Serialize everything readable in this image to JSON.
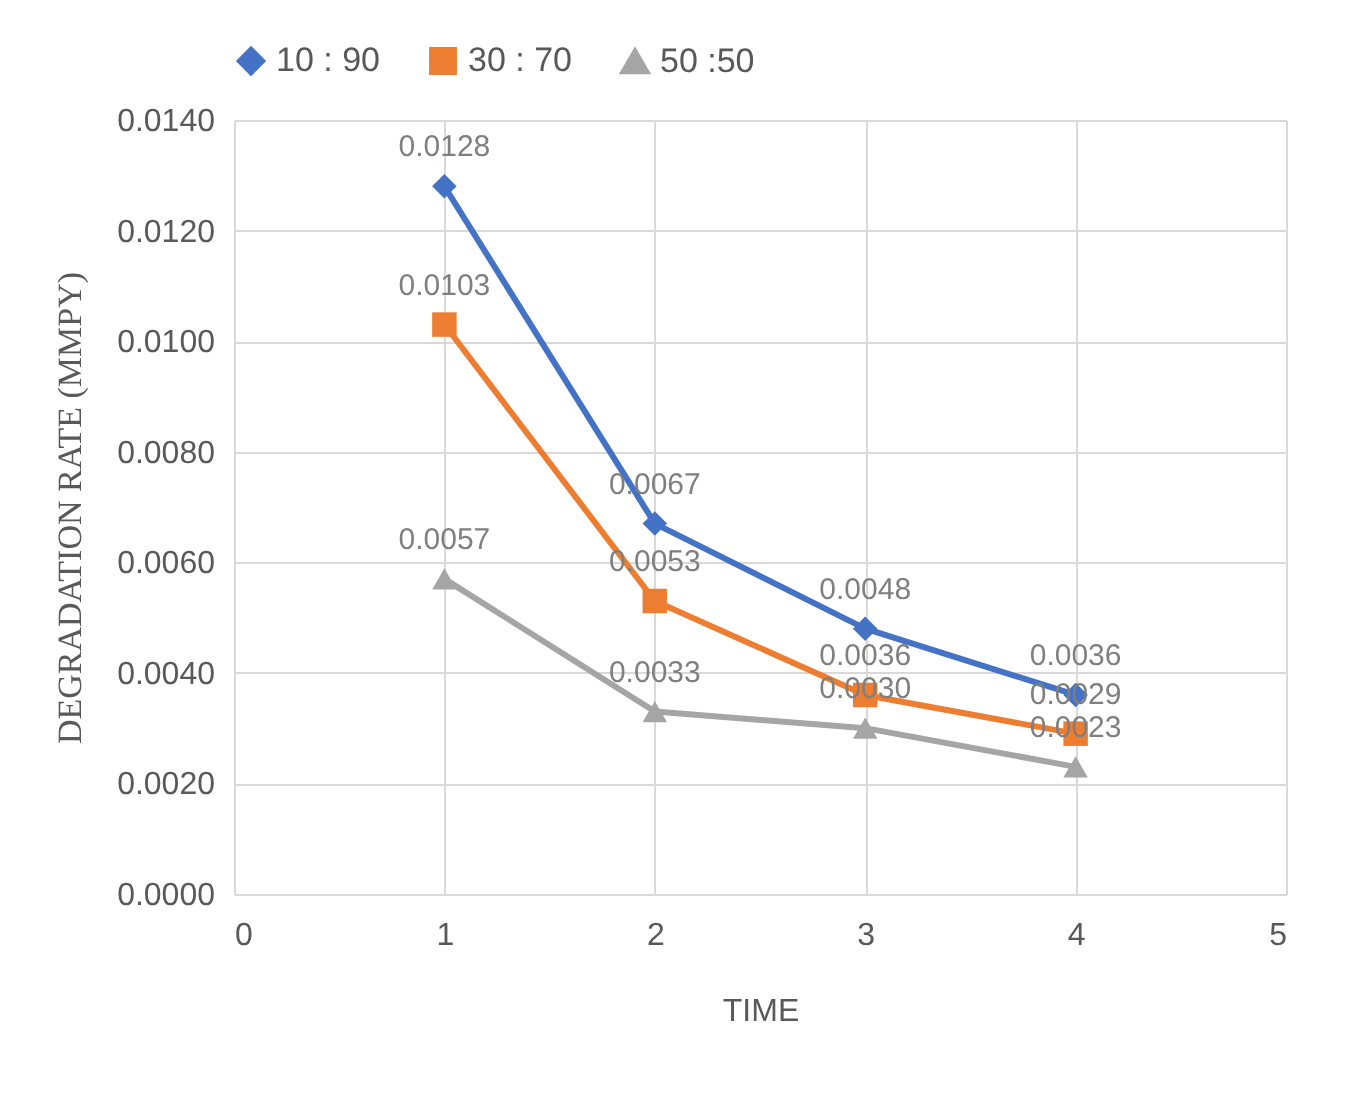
{
  "chart_data": {
    "type": "line",
    "xlabel": "TIME",
    "ylabel": "DEGRADATION RATE (MMPY)",
    "x": [
      1,
      2,
      3,
      4
    ],
    "series": [
      {
        "name": "10 : 90",
        "color": "#4472c4",
        "marker": "diamond",
        "values": [
          0.0128,
          0.0067,
          0.0048,
          0.0036
        ],
        "value_labels": [
          "0.0128",
          "0.0067",
          "0.0048",
          "0.0036"
        ]
      },
      {
        "name": "30 : 70",
        "color": "#ed7d31",
        "marker": "square",
        "values": [
          0.0103,
          0.0053,
          0.0036,
          0.0029
        ],
        "value_labels": [
          "0.0103",
          "0.0053",
          "0.0036",
          "0.0029"
        ]
      },
      {
        "name": "50 :50",
        "color": "#a5a5a5",
        "marker": "triangle",
        "values": [
          0.0057,
          0.0033,
          0.003,
          0.0023
        ],
        "value_labels": [
          "0.0057",
          "0.0033",
          "0.0030",
          "0.0023"
        ]
      }
    ],
    "xlim": [
      0,
      5
    ],
    "xticks": [
      0,
      1,
      2,
      3,
      4,
      5
    ],
    "ylim": [
      0,
      0.014
    ],
    "yticks": [
      {
        "value": 0,
        "label": "0.0000"
      },
      {
        "value": 0.002,
        "label": "0.0020"
      },
      {
        "value": 0.004,
        "label": "0.0040"
      },
      {
        "value": 0.006,
        "label": "0.0060"
      },
      {
        "value": 0.008,
        "label": "0.0080"
      },
      {
        "value": 0.01,
        "label": "0.0100"
      },
      {
        "value": 0.012,
        "label": "0.0120"
      },
      {
        "value": 0.014,
        "label": "0.0140"
      }
    ],
    "grid": true,
    "legend": "top"
  }
}
